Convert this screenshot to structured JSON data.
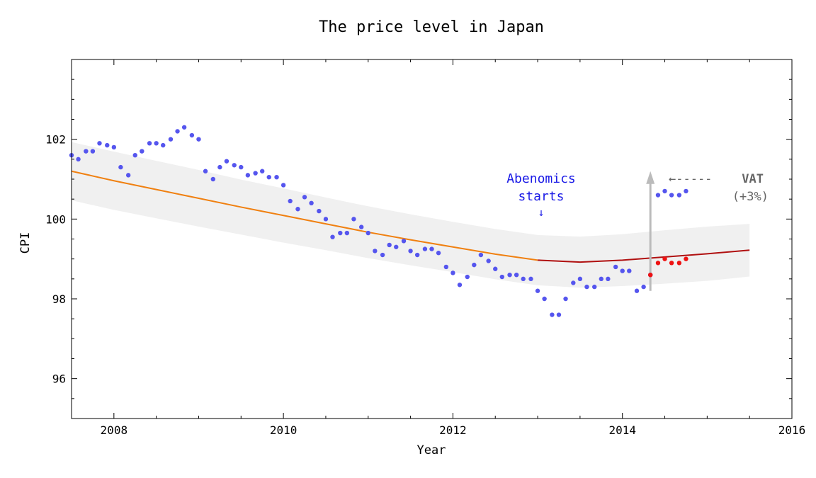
{
  "chart_data": {
    "type": "scatter",
    "title": "The price level in Japan",
    "xlabel": "Year",
    "ylabel": "CPI",
    "xlim": [
      2007.5,
      2016
    ],
    "ylim": [
      95,
      104
    ],
    "x_ticks": [
      2008,
      2010,
      2012,
      2014,
      2016
    ],
    "y_ticks": [
      96,
      98,
      100,
      102
    ],
    "grid": false,
    "colors": {
      "points": "#5555ee",
      "post_vat_adjusted": "#ee1111",
      "trend_fit": "#f08010",
      "trend_forecast": "#b01010",
      "band": "#f0f0f0",
      "vat_arrow": "#bbbbbb",
      "abenomics_text": "#1a1ae6",
      "vat_text": "#666666"
    },
    "series": [
      {
        "role": "monthly_cpi",
        "x": [
          2007.5,
          2007.58,
          2007.67,
          2007.75,
          2007.83,
          2007.92,
          2008.0,
          2008.08,
          2008.17,
          2008.25,
          2008.33,
          2008.42,
          2008.5,
          2008.58,
          2008.67,
          2008.75,
          2008.83,
          2008.92,
          2009.0,
          2009.08,
          2009.17,
          2009.25,
          2009.33,
          2009.42,
          2009.5,
          2009.58,
          2009.67,
          2009.75,
          2009.83,
          2009.92,
          2010.0,
          2010.08,
          2010.17,
          2010.25,
          2010.33,
          2010.42,
          2010.5,
          2010.58,
          2010.67,
          2010.75,
          2010.83,
          2010.92,
          2011.0,
          2011.08,
          2011.17,
          2011.25,
          2011.33,
          2011.42,
          2011.5,
          2011.58,
          2011.67,
          2011.75,
          2011.83,
          2011.92,
          2012.0,
          2012.08,
          2012.17,
          2012.25,
          2012.33,
          2012.42,
          2012.5,
          2012.58,
          2012.67,
          2012.75,
          2012.83,
          2012.92,
          2013.0,
          2013.08,
          2013.17,
          2013.25,
          2013.33,
          2013.42,
          2013.5,
          2013.58,
          2013.67,
          2013.75,
          2013.83,
          2013.92,
          2014.0,
          2014.08,
          2014.17,
          2014.25,
          2014.33,
          2014.42,
          2014.5,
          2014.58,
          2014.67,
          2014.75
        ],
        "y": [
          101.6,
          101.5,
          101.7,
          101.7,
          101.9,
          101.85,
          101.8,
          101.3,
          101.1,
          101.6,
          101.7,
          101.9,
          101.9,
          101.85,
          102.0,
          102.2,
          102.3,
          102.1,
          102.0,
          101.2,
          101.0,
          101.3,
          101.45,
          101.35,
          101.3,
          101.1,
          101.15,
          101.2,
          101.05,
          101.05,
          100.85,
          100.45,
          100.25,
          100.55,
          100.4,
          100.2,
          100.0,
          99.55,
          99.65,
          99.65,
          100.0,
          99.8,
          99.65,
          99.2,
          99.1,
          99.35,
          99.3,
          99.45,
          99.2,
          99.1,
          99.25,
          99.25,
          99.15,
          98.8,
          98.65,
          98.35,
          98.55,
          98.85,
          99.1,
          98.95,
          98.75,
          98.55,
          98.6,
          98.6,
          98.5,
          98.5,
          98.2,
          98.0,
          97.6,
          97.6,
          98.0,
          98.4,
          98.5,
          98.3,
          98.3,
          98.5,
          98.5,
          98.8,
          98.7,
          98.7,
          98.2,
          98.3,
          98.6,
          100.6,
          100.7,
          100.6,
          100.6,
          100.7
        ]
      },
      {
        "role": "vat_adjusted",
        "x": [
          2014.33,
          2014.42,
          2014.5,
          2014.58,
          2014.67,
          2014.75
        ],
        "y": [
          98.6,
          98.9,
          99.0,
          98.9,
          98.9,
          99.0
        ]
      }
    ],
    "trend": {
      "x": [
        2007.5,
        2008.0,
        2008.5,
        2009.0,
        2009.5,
        2010.0,
        2010.5,
        2011.0,
        2011.5,
        2012.0,
        2012.5,
        2013.0,
        2013.5,
        2014.0,
        2014.5,
        2015.0,
        2015.5
      ],
      "y": [
        101.2,
        100.96,
        100.74,
        100.52,
        100.3,
        100.09,
        99.88,
        99.67,
        99.48,
        99.3,
        99.12,
        98.97,
        98.92,
        98.97,
        99.05,
        99.13,
        99.22
      ],
      "forecast_from_x": 2013.0,
      "band_halfwidth": [
        0.73,
        0.73,
        0.72,
        0.71,
        0.69,
        0.68,
        0.66,
        0.65,
        0.64,
        0.63,
        0.63,
        0.63,
        0.64,
        0.65,
        0.67,
        0.68,
        0.66
      ]
    },
    "annotations": [
      {
        "id": "abenomics",
        "lines": [
          "Abenomics",
          "starts"
        ],
        "arrow": "↓",
        "x": 2013.0
      },
      {
        "id": "vat",
        "lines": [
          "VAT",
          "(+3%)"
        ],
        "arrow": "←-----",
        "x": 2014.33,
        "from_y": 98.2,
        "to_y": 101.2
      }
    ]
  }
}
